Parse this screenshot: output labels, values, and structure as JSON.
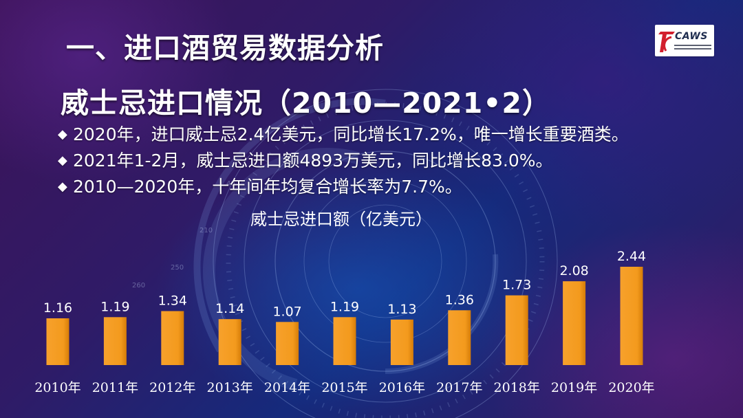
{
  "header": {
    "title_line1": "一、进口酒贸易数据分析",
    "title_line2": "威士忌进口情况（2010—2021•2）",
    "logo_text": "CAWS"
  },
  "bullets": [
    "2020年，进口威士忌2.4亿美元，同比增长17.2%，唯一增长重要酒类。",
    "2021年1-2月，威士忌进口额4893万美元，同比增长83.0%。",
    "2010—2020年，十年间年均复合增长率为7.7%。"
  ],
  "bullet_icon": "diamond-bullet-icon",
  "colors": {
    "bar": "#f39a1d",
    "bar_shadow": "#c86b00",
    "text": "#ffffff",
    "accent": "#d21f2d"
  },
  "chart_data": {
    "type": "bar",
    "title": "威士忌进口额（亿美元）",
    "categories": [
      "2010年",
      "2011年",
      "2012年",
      "2013年",
      "2014年",
      "2015年",
      "2016年",
      "2017年",
      "2018年",
      "2019年",
      "2020年"
    ],
    "values": [
      1.16,
      1.19,
      1.34,
      1.14,
      1.07,
      1.19,
      1.13,
      1.36,
      1.73,
      2.08,
      2.44
    ],
    "data_labels": [
      "1.16",
      "1.19",
      "1.34",
      "1.14",
      "1.07",
      "1.19",
      "1.13",
      "1.36",
      "1.73",
      "2.08",
      "2.44"
    ],
    "xlabel": "",
    "ylabel": "",
    "ylim": [
      0,
      2.44
    ],
    "grid": false,
    "legend": "none"
  }
}
